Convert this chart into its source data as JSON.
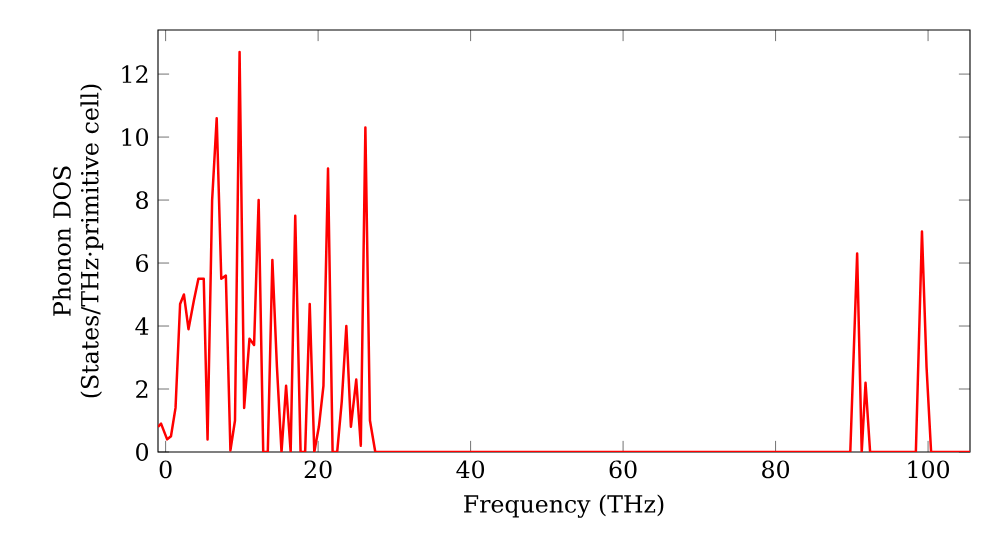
{
  "chart_data": {
    "type": "line",
    "xlabel": "Frequency (THz)",
    "ylabel": "Phonon DOS (States/THz·primitive cell)",
    "xlim": [
      -1,
      105.5
    ],
    "ylim": [
      0,
      13.4
    ],
    "xticks": [
      0,
      20,
      40,
      60,
      80,
      100
    ],
    "yticks": [
      0,
      2,
      4,
      6,
      8,
      10,
      12
    ],
    "grid": false,
    "marker": "none",
    "line_style": "solid",
    "series": [
      {
        "color": "#ff0000",
        "x": [
          -1.0,
          -0.6,
          0.2,
          0.7,
          1.3,
          1.9,
          2.4,
          3.0,
          3.7,
          4.3,
          5.0,
          5.5,
          6.1,
          6.7,
          7.3,
          7.9,
          8.5,
          9.1,
          9.7,
          10.3,
          11.0,
          11.6,
          12.2,
          12.8,
          13.4,
          14.0,
          14.6,
          15.2,
          15.8,
          16.4,
          17.0,
          17.7,
          18.3,
          18.9,
          19.5,
          20.1,
          20.7,
          21.3,
          21.9,
          22.5,
          23.1,
          23.7,
          24.3,
          25.0,
          25.6,
          26.2,
          26.8,
          27.5,
          89.8,
          90.7,
          91.3,
          91.8,
          92.4,
          98.4,
          99.2,
          99.8,
          100.4,
          105.5
        ],
        "values": [
          0.8,
          0.9,
          0.4,
          0.5,
          1.4,
          4.7,
          5.0,
          3.9,
          4.8,
          5.5,
          5.5,
          0.4,
          8.0,
          10.6,
          5.5,
          5.6,
          0.05,
          1.0,
          12.7,
          1.4,
          3.6,
          3.4,
          8.0,
          0,
          0,
          6.1,
          2.7,
          0,
          2.1,
          0,
          7.5,
          0,
          0,
          4.7,
          0,
          0.8,
          2.1,
          9.0,
          0,
          0,
          1.6,
          4.0,
          0.8,
          2.3,
          0.2,
          10.3,
          1.0,
          0,
          0,
          6.3,
          0,
          2.2,
          0,
          0,
          7.0,
          2.7,
          0,
          0
        ]
      }
    ]
  }
}
